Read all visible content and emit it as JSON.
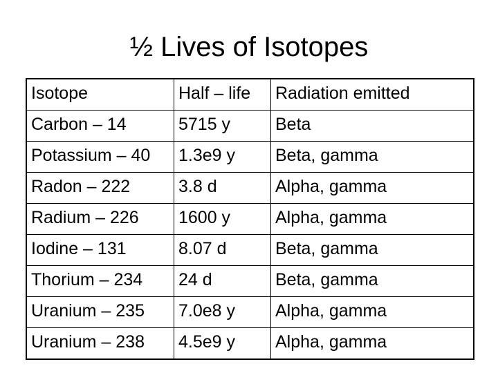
{
  "title": "½ Lives of Isotopes",
  "table": {
    "header": [
      "Isotope",
      "Half – life",
      "Radiation emitted"
    ],
    "rows": [
      [
        "Carbon – 14",
        "5715 y",
        "Beta"
      ],
      [
        "Potassium – 40",
        "1.3e9 y",
        "Beta, gamma"
      ],
      [
        "Radon – 222",
        "3.8 d",
        "Alpha, gamma"
      ],
      [
        "Radium – 226",
        "1600 y",
        "Alpha, gamma"
      ],
      [
        "Iodine – 131",
        "8.07 d",
        "Beta, gamma"
      ],
      [
        "Thorium – 234",
        "24 d",
        "Beta, gamma"
      ],
      [
        "Uranium – 235",
        "7.0e8 y",
        "Alpha, gamma"
      ],
      [
        "Uranium – 238",
        "4.5e9 y",
        "Alpha, gamma"
      ]
    ]
  }
}
